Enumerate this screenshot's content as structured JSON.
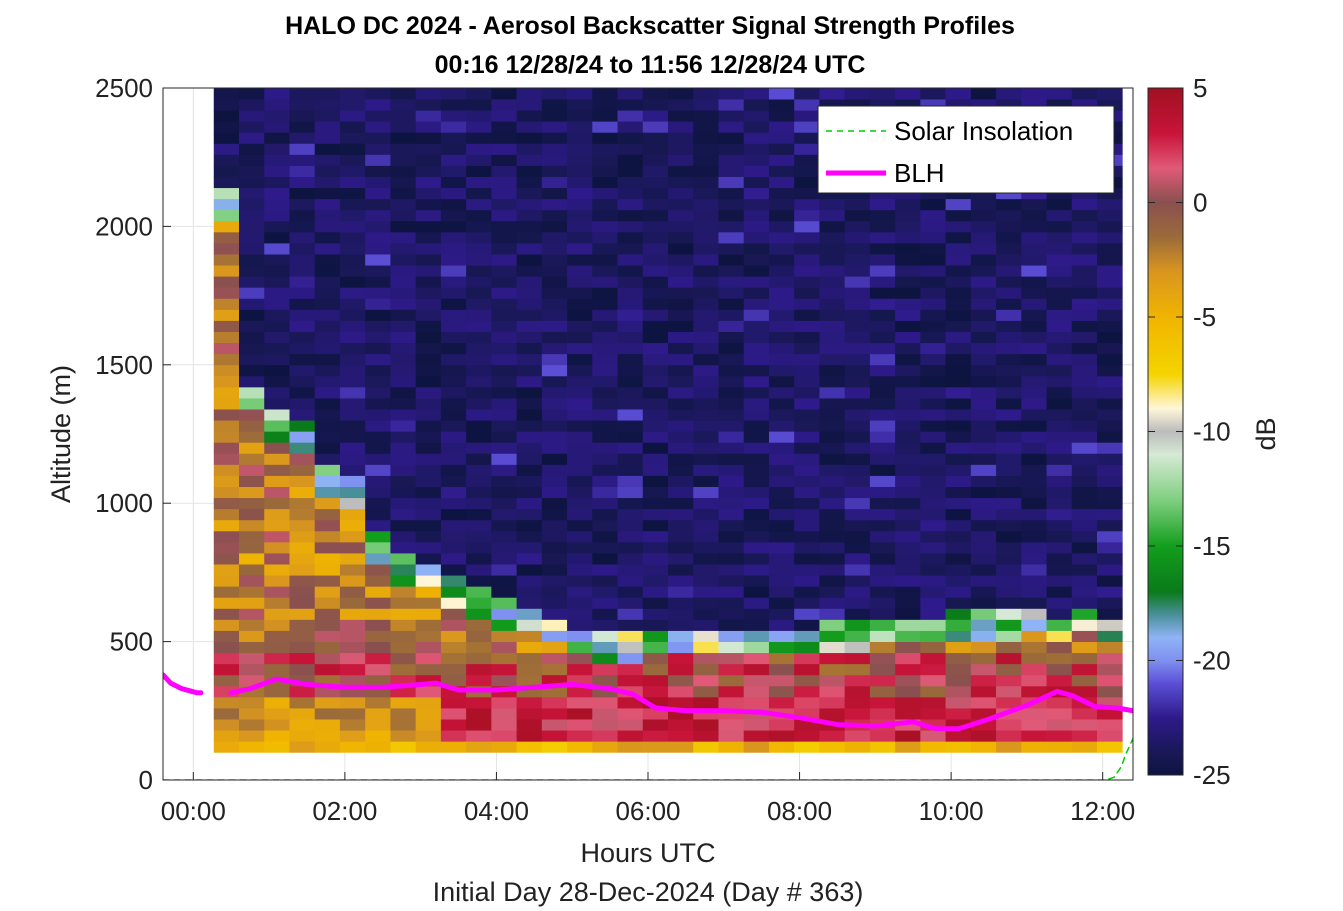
{
  "chart_data": {
    "type": "heatmap",
    "title": "HALO DC 2024 - Aerosol Backscatter Signal Strength Profiles",
    "subtitle": "00:16 12/28/24 to 11:56 12/28/24  UTC",
    "xlabel": "Hours UTC",
    "xlabel2": "Initial Day 28-Dec-2024 (Day # 363)",
    "ylabel": "Altitude (m)",
    "colorbar_label": "dB",
    "xlim": [
      -0.4,
      12.4
    ],
    "ylim": [
      0,
      2500
    ],
    "clim": [
      -25,
      5
    ],
    "x_tick_values": [
      0,
      2,
      4,
      6,
      8,
      10,
      12
    ],
    "x_tick_labels": [
      "00:00",
      "02:00",
      "04:00",
      "06:00",
      "08:00",
      "10:00",
      "12:00"
    ],
    "y_tick_values": [
      0,
      500,
      1000,
      1500,
      2000,
      2500
    ],
    "y_tick_labels": [
      "0",
      "500",
      "1000",
      "1500",
      "2000",
      "2500"
    ],
    "colorbar_tick_values": [
      5,
      0,
      -5,
      -10,
      -15,
      -20,
      -25
    ],
    "colorbar_tick_labels": [
      "5",
      "0",
      "-5",
      "-10",
      "-15",
      "-20",
      "-25"
    ],
    "grid": true,
    "legend_position": "top-right",
    "heatmap": {
      "x_start": 0.27,
      "x_step": 0.333,
      "columns": 36,
      "y_start": 100,
      "y_step": 40,
      "rows": 60,
      "data_gap_hours": [
        [
          0,
          0.27
        ]
      ],
      "profile_tops_m": [
        2100,
        1400,
        1300,
        1250,
        1100,
        1050,
        850,
        780,
        750,
        700,
        650,
        620,
        600,
        560,
        520,
        500,
        500,
        520,
        520,
        520,
        520,
        520,
        520,
        520,
        540,
        540,
        560,
        560,
        560,
        580,
        580,
        580,
        600,
        560,
        600,
        560
      ]
    },
    "series": [
      {
        "name": "Solar Insolation",
        "color": "#00cc00",
        "style": "dashed",
        "x": [
          -0.4,
          12.05,
          12.15,
          12.25,
          12.3,
          12.4
        ],
        "y": [
          0,
          0,
          10,
          50,
          90,
          150
        ]
      },
      {
        "name": "BLH",
        "color": "#ff00ff",
        "style": "solid",
        "segments": [
          {
            "x": [
              -0.4,
              -0.3,
              -0.15,
              0.05,
              0.1
            ],
            "y": [
              380,
              350,
              330,
              315,
              315
            ]
          },
          {
            "x": [
              0.5,
              0.75,
              1.1,
              1.5,
              2.0,
              2.5,
              3.0,
              3.2,
              3.5,
              4.0,
              4.5,
              5.0,
              5.5,
              5.8,
              6.1,
              6.5,
              7.0,
              7.5,
              8.0,
              8.5,
              9.0,
              9.5,
              9.8,
              10.1,
              10.5,
              11.0,
              11.4,
              11.6,
              11.9,
              12.2,
              12.4
            ],
            "y": [
              315,
              330,
              365,
              345,
              335,
              335,
              345,
              350,
              325,
              325,
              335,
              345,
              330,
              310,
              260,
              250,
              250,
              245,
              225,
              200,
              195,
              210,
              185,
              185,
              220,
              270,
              320,
              305,
              265,
              260,
              250
            ]
          }
        ]
      }
    ]
  }
}
